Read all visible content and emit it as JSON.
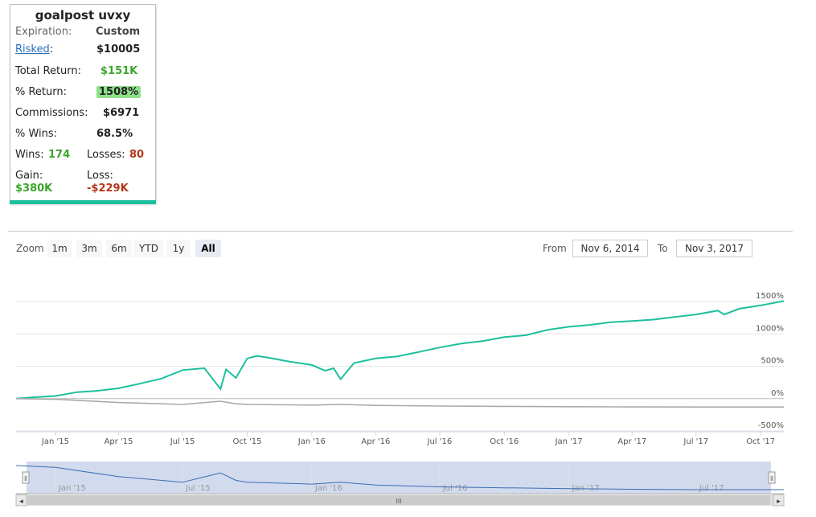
{
  "stats": {
    "title": "goalpost uvxy",
    "expiration_label": "Expiration:",
    "expiration_value": "Custom",
    "risked_label": "Risked",
    "risked_colon": ":",
    "risked_value": "$10005",
    "total_return_label": "Total Return:",
    "total_return_value": "$151K",
    "pct_return_label": "% Return:",
    "pct_return_value": "1508%",
    "commissions_label": "Commissions:",
    "commissions_value": "$6971",
    "pct_wins_label": "% Wins:",
    "pct_wins_value": "68.5%",
    "wins_label": "Wins:",
    "wins_value": "174",
    "losses_label": "Losses:",
    "losses_value": "80",
    "gain_label": "Gain:",
    "gain_value": "$380K",
    "loss_label": "Loss:",
    "loss_value": "-$229K",
    "colors": {
      "green": "#3aa62a",
      "red": "#b5361c",
      "badge": "#8fe08a",
      "accent": "#1dbf9e"
    }
  },
  "range_selector": {
    "zoom_label": "Zoom",
    "buttons": [
      "1m",
      "3m",
      "6m",
      "YTD",
      "1y",
      "All"
    ],
    "active": "All",
    "from_label": "From",
    "from_value": "Nov 6, 2014",
    "to_label": "To",
    "to_value": "Nov 3, 2017"
  },
  "chart_data": {
    "type": "line",
    "x_range": [
      "2014-11-06",
      "2017-11-03"
    ],
    "ylim": [
      -500,
      1500
    ],
    "y_ticks": [
      "1500%",
      "1000%",
      "500%",
      "0%",
      "-500%"
    ],
    "x_ticks": [
      "Jan '15",
      "Apr '15",
      "Jul '15",
      "Oct '15",
      "Jan '16",
      "Apr '16",
      "Jul '16",
      "Oct '16",
      "Jan '17",
      "Apr '17",
      "Jul '17",
      "Oct '17"
    ],
    "grid": true,
    "legend": "none",
    "series": [
      {
        "color": "#1dbf9e",
        "points": [
          [
            "2014-11-06",
            0
          ],
          [
            "2014-12-01",
            20
          ],
          [
            "2015-01-01",
            40
          ],
          [
            "2015-02-01",
            100
          ],
          [
            "2015-03-01",
            120
          ],
          [
            "2015-04-01",
            160
          ],
          [
            "2015-05-01",
            230
          ],
          [
            "2015-06-01",
            310
          ],
          [
            "2015-07-01",
            440
          ],
          [
            "2015-08-01",
            470
          ],
          [
            "2015-08-24",
            150
          ],
          [
            "2015-09-01",
            450
          ],
          [
            "2015-09-15",
            320
          ],
          [
            "2015-10-01",
            620
          ],
          [
            "2015-10-15",
            660
          ],
          [
            "2015-11-01",
            630
          ],
          [
            "2015-12-01",
            570
          ],
          [
            "2016-01-01",
            520
          ],
          [
            "2016-01-20",
            430
          ],
          [
            "2016-02-01",
            470
          ],
          [
            "2016-02-11",
            300
          ],
          [
            "2016-03-01",
            550
          ],
          [
            "2016-04-01",
            620
          ],
          [
            "2016-05-01",
            650
          ],
          [
            "2016-06-01",
            720
          ],
          [
            "2016-07-01",
            790
          ],
          [
            "2016-08-01",
            850
          ],
          [
            "2016-09-01",
            890
          ],
          [
            "2016-10-01",
            950
          ],
          [
            "2016-11-01",
            980
          ],
          [
            "2016-12-01",
            1060
          ],
          [
            "2017-01-01",
            1110
          ],
          [
            "2017-02-01",
            1140
          ],
          [
            "2017-03-01",
            1180
          ],
          [
            "2017-04-01",
            1200
          ],
          [
            "2017-05-01",
            1220
          ],
          [
            "2017-06-01",
            1260
          ],
          [
            "2017-07-01",
            1300
          ],
          [
            "2017-08-01",
            1360
          ],
          [
            "2017-08-10",
            1300
          ],
          [
            "2017-09-01",
            1390
          ],
          [
            "2017-10-01",
            1440
          ],
          [
            "2017-11-03",
            1508
          ]
        ]
      },
      {
        "color": "#aaaaaa",
        "points": [
          [
            "2014-11-06",
            0
          ],
          [
            "2015-01-01",
            -10
          ],
          [
            "2015-04-01",
            -60
          ],
          [
            "2015-07-01",
            -90
          ],
          [
            "2015-08-24",
            -40
          ],
          [
            "2015-09-15",
            -80
          ],
          [
            "2015-10-01",
            -90
          ],
          [
            "2016-01-01",
            -100
          ],
          [
            "2016-02-11",
            -90
          ],
          [
            "2016-04-01",
            -105
          ],
          [
            "2016-07-01",
            -115
          ],
          [
            "2016-10-01",
            -120
          ],
          [
            "2017-01-01",
            -125
          ],
          [
            "2017-04-01",
            -128
          ],
          [
            "2017-07-01",
            -130
          ],
          [
            "2017-11-03",
            -130
          ]
        ]
      }
    ]
  },
  "navigator": {
    "labels": [
      "Jan '15",
      "Jul '15",
      "Jan '16",
      "Jul '16",
      "Jan '17",
      "Jul '17"
    ],
    "scrollbar_grip": "III",
    "left_arrow": "◂",
    "right_arrow": "▸",
    "handle_glyph": "⦀"
  }
}
